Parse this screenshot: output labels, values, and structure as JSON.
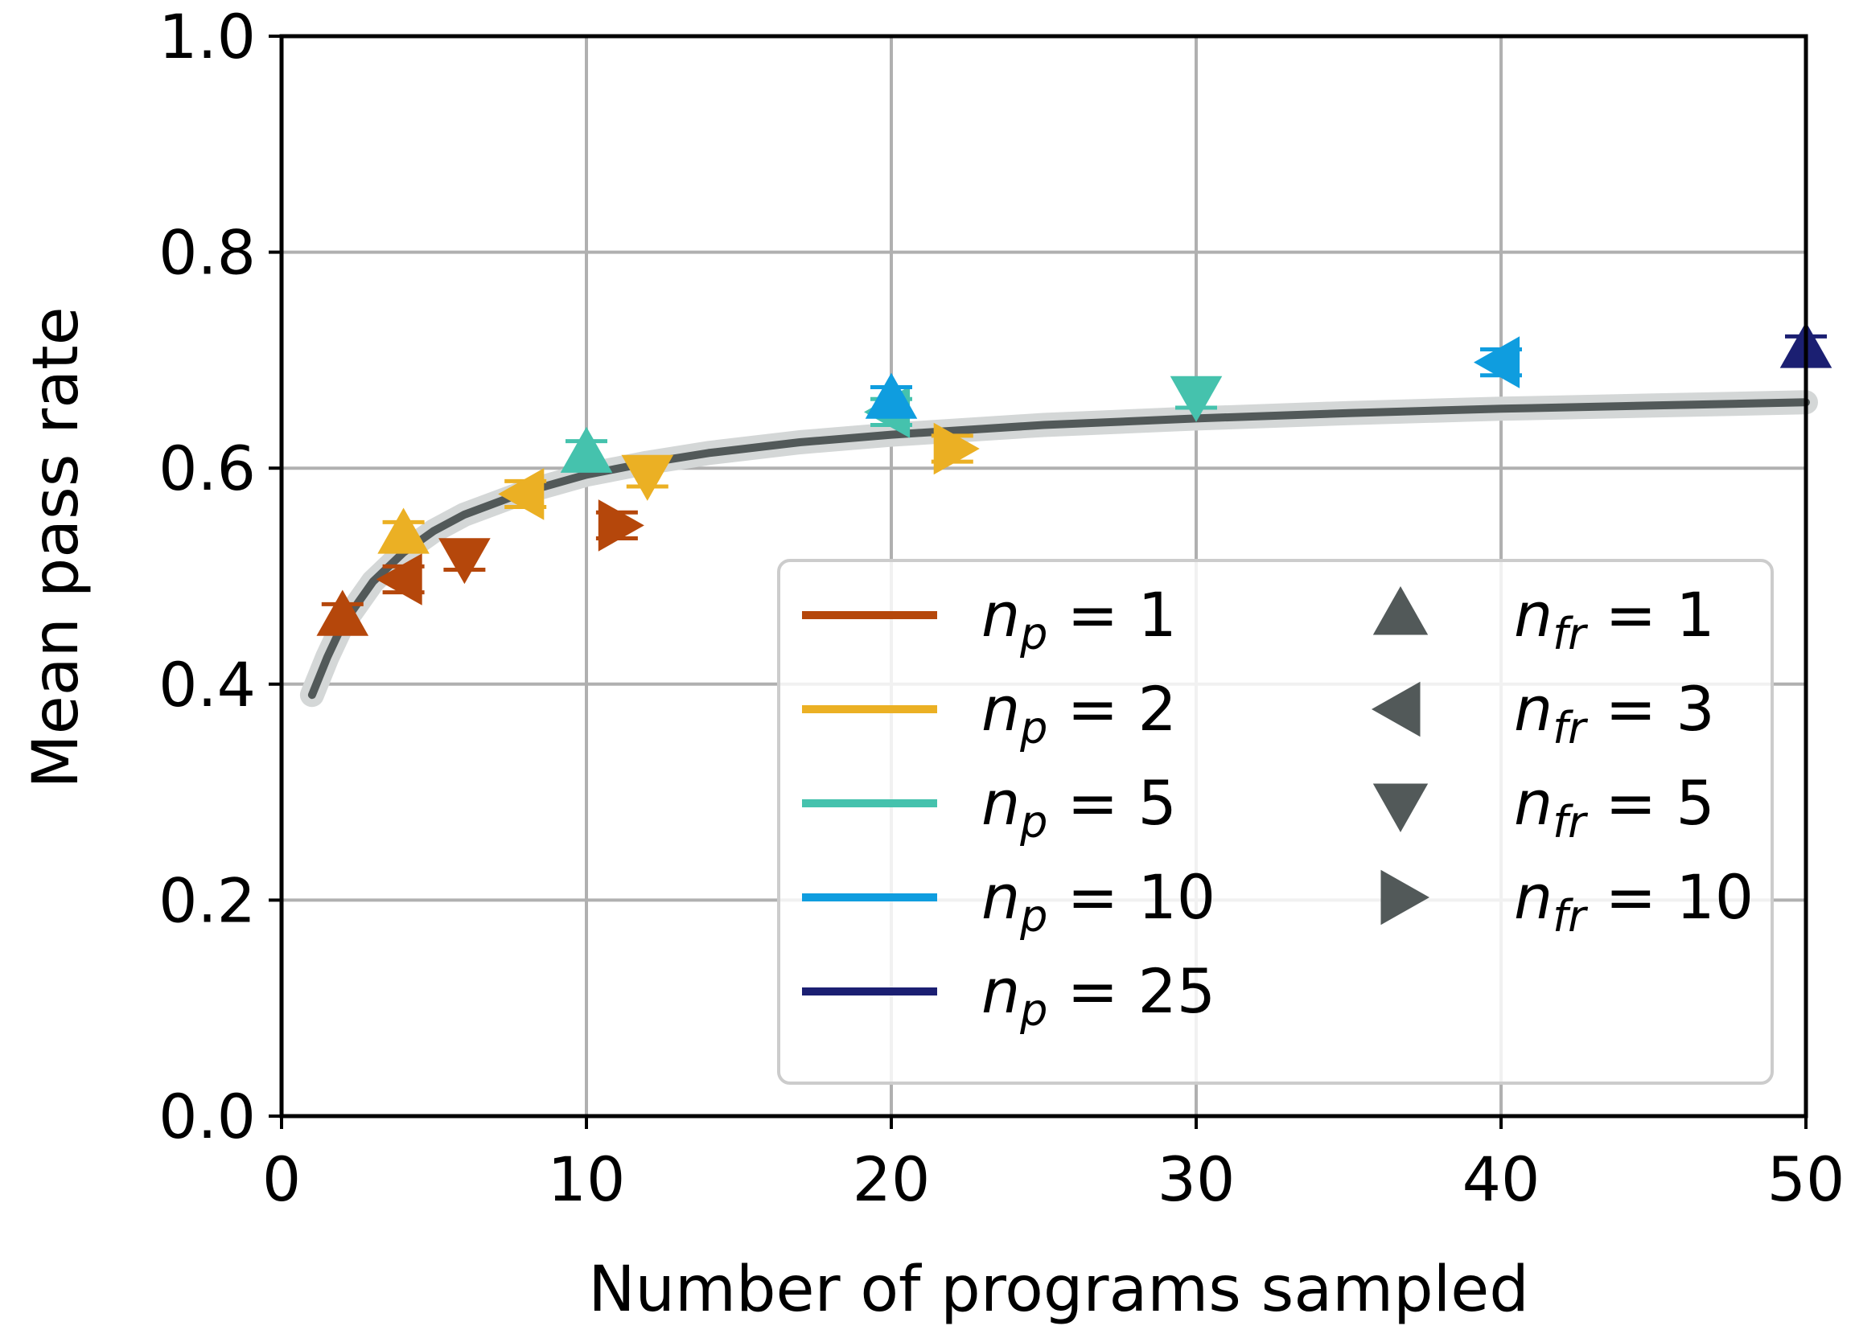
{
  "chart_data": {
    "type": "scatter",
    "xlabel": "Number of programs sampled",
    "ylabel": "Mean pass rate",
    "xlim": [
      0,
      50
    ],
    "ylim": [
      0.0,
      1.0
    ],
    "xticks": [
      "0",
      "10",
      "20",
      "30",
      "40",
      "50"
    ],
    "yticks": [
      "0.0",
      "0.2",
      "0.4",
      "0.6",
      "0.8",
      "1.0"
    ],
    "grid": true,
    "legend_placement": "lower-right",
    "colors": {
      "np_1": "#b5470b",
      "np_2": "#ebb024",
      "np_5": "#45c2ad",
      "np_10": "#0f9ddf",
      "np_25": "#1b1f72",
      "fit": "#525959"
    },
    "fit_curve": {
      "x": [
        1,
        1.5,
        2,
        3,
        4,
        5,
        6,
        8,
        10,
        12,
        14,
        17,
        20,
        25,
        30,
        35,
        40,
        45,
        50
      ],
      "y": [
        0.39,
        0.425,
        0.455,
        0.495,
        0.522,
        0.542,
        0.557,
        0.578,
        0.594,
        0.605,
        0.614,
        0.624,
        0.631,
        0.64,
        0.646,
        0.651,
        0.655,
        0.658,
        0.661
      ]
    },
    "series": [
      {
        "np": 1,
        "nfr": 1,
        "marker": "up",
        "points": [
          {
            "x": 2,
            "y": 0.462,
            "err": 0.012
          }
        ]
      },
      {
        "np": 1,
        "nfr": 3,
        "marker": "left",
        "points": [
          {
            "x": 4,
            "y": 0.497,
            "err": 0.012
          }
        ]
      },
      {
        "np": 1,
        "nfr": 5,
        "marker": "down",
        "points": [
          {
            "x": 6,
            "y": 0.518,
            "err": 0.012
          }
        ]
      },
      {
        "np": 1,
        "nfr": 10,
        "marker": "right",
        "points": [
          {
            "x": 11,
            "y": 0.547,
            "err": 0.012
          }
        ]
      },
      {
        "np": 2,
        "nfr": 1,
        "marker": "up",
        "points": [
          {
            "x": 4,
            "y": 0.538,
            "err": 0.012
          }
        ]
      },
      {
        "np": 2,
        "nfr": 3,
        "marker": "left",
        "points": [
          {
            "x": 8,
            "y": 0.576,
            "err": 0.012
          }
        ]
      },
      {
        "np": 2,
        "nfr": 5,
        "marker": "down",
        "points": [
          {
            "x": 12,
            "y": 0.595,
            "err": 0.012
          }
        ]
      },
      {
        "np": 2,
        "nfr": 10,
        "marker": "right",
        "points": [
          {
            "x": 22,
            "y": 0.618,
            "err": 0.012
          }
        ]
      },
      {
        "np": 5,
        "nfr": 1,
        "marker": "up",
        "points": [
          {
            "x": 10,
            "y": 0.613,
            "err": 0.012
          }
        ]
      },
      {
        "np": 5,
        "nfr": 3,
        "marker": "left",
        "points": [
          {
            "x": 20,
            "y": 0.652,
            "err": 0.012
          }
        ]
      },
      {
        "np": 5,
        "nfr": 5,
        "marker": "down",
        "points": [
          {
            "x": 30,
            "y": 0.668,
            "err": 0.012
          }
        ]
      },
      {
        "np": 10,
        "nfr": 1,
        "marker": "up",
        "points": [
          {
            "x": 20,
            "y": 0.663,
            "err": 0.012
          }
        ]
      },
      {
        "np": 10,
        "nfr": 3,
        "marker": "left",
        "points": [
          {
            "x": 40,
            "y": 0.698,
            "err": 0.012
          }
        ]
      },
      {
        "np": 25,
        "nfr": 1,
        "marker": "up",
        "points": [
          {
            "x": 50,
            "y": 0.71,
            "err": 0.012
          }
        ]
      }
    ],
    "legend_colors": [
      {
        "label": "n_p = 1",
        "sub": "p",
        "value": "1",
        "color_key": "np_1"
      },
      {
        "label": "n_p = 2",
        "sub": "p",
        "value": "2",
        "color_key": "np_2"
      },
      {
        "label": "n_p = 5",
        "sub": "p",
        "value": "5",
        "color_key": "np_5"
      },
      {
        "label": "n_p = 10",
        "sub": "p",
        "value": "10",
        "color_key": "np_10"
      },
      {
        "label": "n_p = 25",
        "sub": "p",
        "value": "25",
        "color_key": "np_25"
      }
    ],
    "legend_markers": [
      {
        "label": "n_fr = 1",
        "sub": "fr",
        "value": "1",
        "marker": "up"
      },
      {
        "label": "n_fr = 3",
        "sub": "fr",
        "value": "3",
        "marker": "left"
      },
      {
        "label": "n_fr = 5",
        "sub": "fr",
        "value": "5",
        "marker": "down"
      },
      {
        "label": "n_fr = 10",
        "sub": "fr",
        "value": "10",
        "marker": "right"
      }
    ]
  }
}
